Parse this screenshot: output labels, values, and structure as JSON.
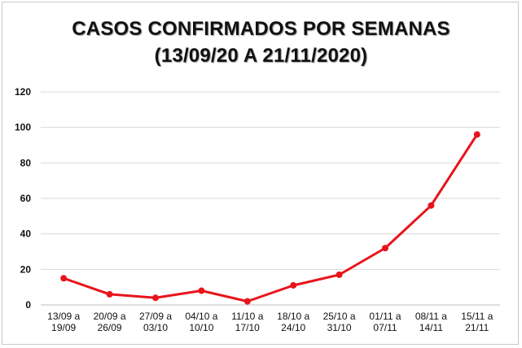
{
  "chart_data": {
    "type": "line",
    "title_lines": [
      "CASOS CONFIRMADOS POR SEMANAS",
      "(13/09/20  A 21/11/2020)"
    ],
    "categories": [
      [
        "13/09 a",
        "19/09"
      ],
      [
        "20/09 a",
        "26/09"
      ],
      [
        "27/09 a",
        "03/10"
      ],
      [
        "04/10 a",
        "10/10"
      ],
      [
        "11/10 a",
        "17/10"
      ],
      [
        "18/10 a",
        "24/10"
      ],
      [
        "25/10 a",
        "31/10"
      ],
      [
        "01/11 a",
        "07/11"
      ],
      [
        "08/11 a",
        "14/11"
      ],
      [
        "15/11 a",
        "21/11"
      ]
    ],
    "values": [
      15,
      6,
      4,
      8,
      2,
      11,
      17,
      32,
      56,
      96
    ],
    "ylim": [
      0,
      120
    ],
    "yticks": [
      0,
      20,
      40,
      60,
      80,
      100,
      120
    ],
    "grid": true,
    "legend": "none",
    "line_color": "#e8141c"
  }
}
